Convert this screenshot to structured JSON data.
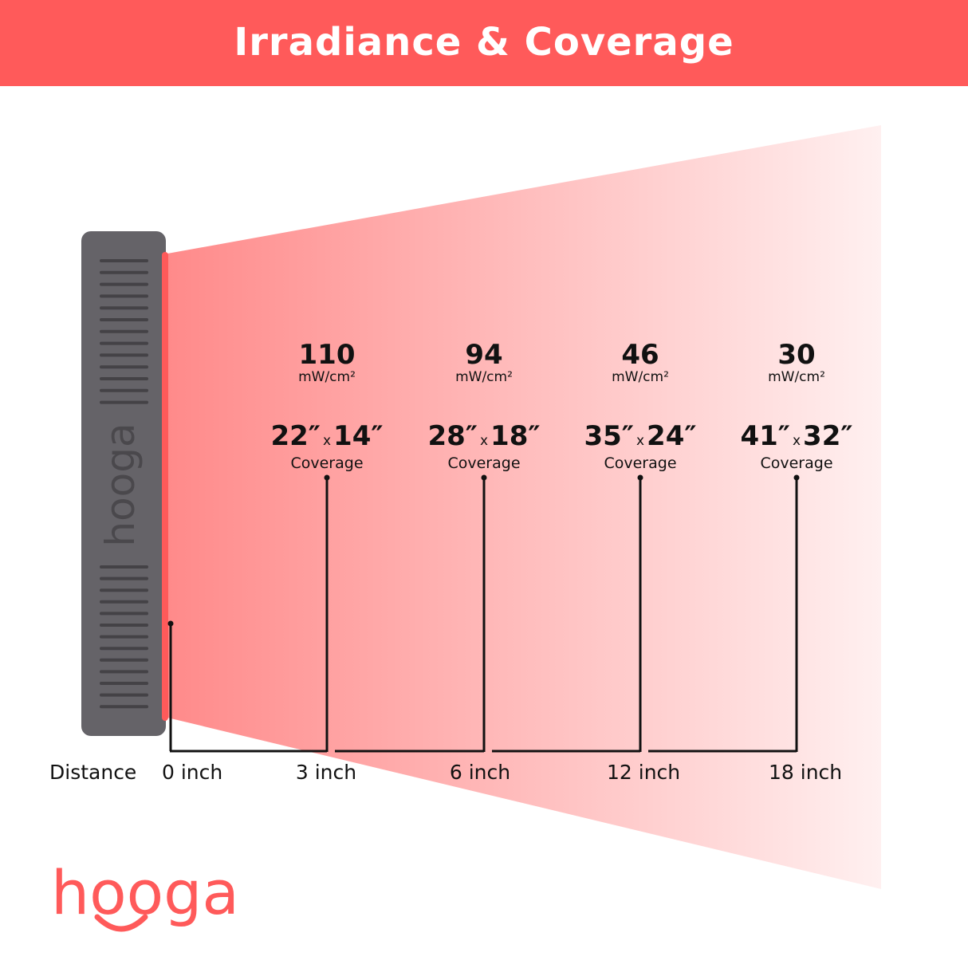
{
  "title": "Irradiance & Coverage",
  "device_logo": "hooga",
  "brand_logo": "hooga",
  "colors": {
    "accent": "#ff5a5a",
    "device": "#656368",
    "beam_start": "#ff8a8a",
    "beam_end": "#fff0f0"
  },
  "distance_label": "Distance",
  "zero_label": "0 inch",
  "points": [
    {
      "irradiance": "110",
      "unit": "mW/cm²",
      "width": "22″",
      "x": "x",
      "height": "14″",
      "coverage": "Coverage",
      "distance": "3 inch"
    },
    {
      "irradiance": "94",
      "unit": "mW/cm²",
      "width": "28″",
      "x": "x",
      "height": "18″",
      "coverage": "Coverage",
      "distance": "6 inch"
    },
    {
      "irradiance": "46",
      "unit": "mW/cm²",
      "width": "35″",
      "x": "x",
      "height": "24″",
      "coverage": "Coverage",
      "distance": "12 inch"
    },
    {
      "irradiance": "30",
      "unit": "mW/cm²",
      "width": "41″",
      "x": "x",
      "height": "32″",
      "coverage": "Coverage",
      "distance": "18 inch"
    }
  ]
}
